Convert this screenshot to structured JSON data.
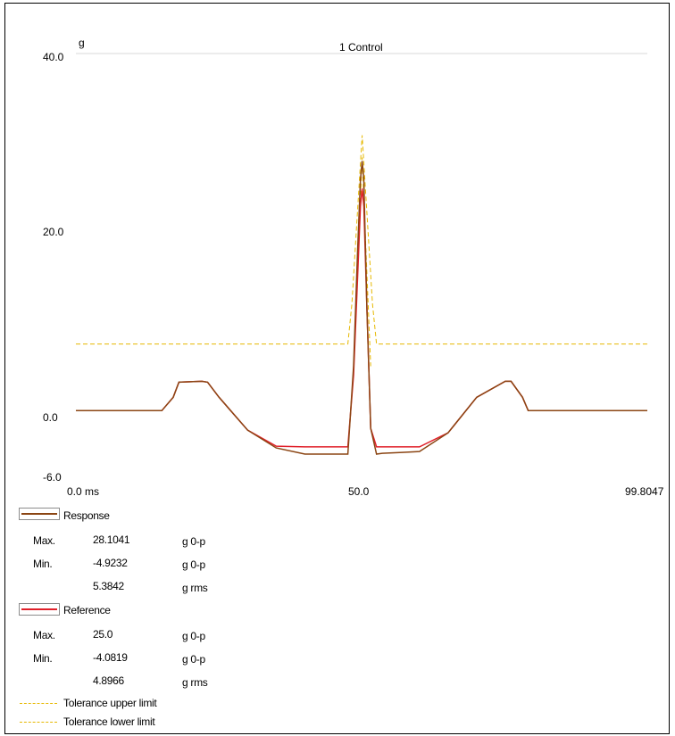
{
  "chart_data": {
    "type": "line",
    "title": "1 Control",
    "y_unit": "g",
    "x_unit": "ms",
    "x_ticks": [
      "0.0 ms",
      "50.0",
      "99.8047"
    ],
    "y_ticks": [
      "40.0",
      "20.0",
      "0.0",
      "-6.0"
    ],
    "xlim": [
      0,
      99.8047
    ],
    "ylim": [
      -6,
      40
    ],
    "grid": false,
    "legend_position": "bottom-left",
    "series": [
      {
        "name": "Response",
        "color": "#8b4513",
        "x": [
          0,
          5,
          15,
          17,
          18,
          22,
          23,
          25,
          30,
          35,
          40,
          44,
          45,
          47.5,
          48.5,
          49.2,
          49.7,
          50,
          50.3,
          50.8,
          51.5,
          52.5,
          53.5,
          57,
          60,
          65,
          70,
          75,
          76,
          78,
          79,
          81,
          99.8
        ],
        "y": [
          0,
          0,
          0,
          1.5,
          3.2,
          3.3,
          3.2,
          1.5,
          -2.2,
          -4.2,
          -4.9,
          -4.9,
          -4.9,
          -4.9,
          5,
          18,
          26,
          28.1,
          26,
          12,
          -2,
          -4.9,
          -4.8,
          -4.7,
          -4.6,
          -2.5,
          1.5,
          3.3,
          3.3,
          1.5,
          0,
          0,
          0
        ]
      },
      {
        "name": "Reference",
        "color": "#e0202a",
        "x": [
          0,
          15,
          17,
          18,
          22,
          23,
          25,
          30,
          35,
          40,
          44,
          45,
          47.5,
          48.5,
          49.2,
          49.7,
          50,
          50.3,
          50.8,
          51.5,
          52.5,
          60,
          65,
          70,
          75,
          76,
          78,
          79,
          81,
          99.8
        ],
        "y": [
          0,
          0,
          1.5,
          3.2,
          3.3,
          3.2,
          1.5,
          -2.2,
          -4.0,
          -4.08,
          -4.08,
          -4.08,
          -4.08,
          4,
          15,
          23,
          25,
          23,
          12,
          -2,
          -4.08,
          -4.08,
          -2.5,
          1.5,
          3.3,
          3.3,
          1.5,
          0,
          0,
          0
        ]
      },
      {
        "name": "Tolerance upper limit",
        "color": "#e6b800",
        "dashed": true,
        "x": [
          0,
          47.5,
          48.2,
          50,
          51.8,
          52.5,
          99.8
        ],
        "y": [
          7.5,
          7.5,
          12,
          31,
          12,
          7.5,
          7.5
        ]
      },
      {
        "name": "Tolerance lower limit",
        "color": "#e6b800",
        "dashed": true,
        "x": [
          48.5,
          50,
          51.5
        ],
        "y": [
          5,
          28.5,
          5
        ]
      }
    ]
  },
  "legend": {
    "response": {
      "label": "Response",
      "max_label": "Max.",
      "max_value": "28.1041",
      "max_unit": "g 0-p",
      "min_label": "Min.",
      "min_value": "-4.9232",
      "min_unit": "g 0-p",
      "rms_value": "5.3842",
      "rms_unit": "g rms"
    },
    "reference": {
      "label": "Reference",
      "max_label": "Max.",
      "max_value": "25.0",
      "max_unit": "g 0-p",
      "min_label": "Min.",
      "min_value": "-4.0819",
      "min_unit": "g 0-p",
      "rms_value": "4.8966",
      "rms_unit": "g rms"
    },
    "tol_upper": "Tolerance upper limit",
    "tol_lower": "Tolerance lower limit"
  }
}
